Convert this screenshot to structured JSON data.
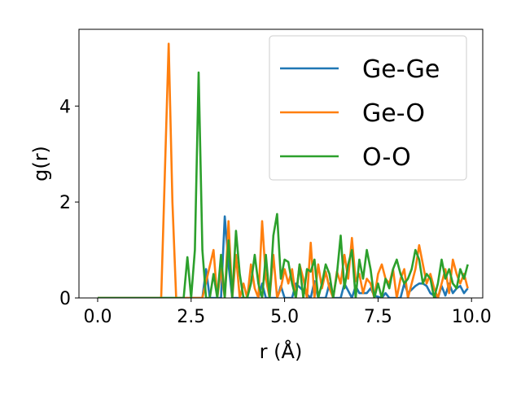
{
  "chart_data": {
    "type": "line",
    "xlabel": "r (Å)",
    "ylabel": "g(r)",
    "xlim": [
      -0.5,
      10.3
    ],
    "ylim": [
      0,
      5.6
    ],
    "xticks": [
      0.0,
      2.5,
      5.0,
      7.5,
      10.0
    ],
    "xtick_labels": [
      "0.0",
      "2.5",
      "5.0",
      "7.5",
      "10.0"
    ],
    "yticks": [
      0,
      2,
      4
    ],
    "ytick_labels": [
      "0",
      "2",
      "4"
    ],
    "grid": false,
    "legend_position": "top-right",
    "series": [
      {
        "name": "Ge-Ge",
        "color": "#1f77b4",
        "x": [
          0.0,
          2.8,
          2.9,
          3.0,
          3.3,
          3.4,
          3.5,
          3.6,
          4.3,
          4.4,
          4.5,
          4.8,
          4.9,
          5.0,
          5.2,
          5.3,
          5.7,
          5.8,
          5.9,
          6.1,
          6.2,
          6.3,
          6.5,
          6.6,
          6.8,
          6.9,
          7.0,
          7.2,
          7.3,
          7.4,
          7.6,
          7.7,
          7.8,
          8.1,
          8.2,
          8.3,
          8.5,
          8.6,
          8.7,
          8.8,
          8.9,
          9.0,
          9.1,
          9.2,
          9.3,
          9.4,
          9.5,
          9.6,
          9.7,
          9.8,
          9.9
        ],
        "y": [
          0.0,
          0.0,
          0.6,
          0.0,
          0.0,
          1.7,
          0.7,
          0.0,
          0.0,
          0.3,
          0.0,
          0.0,
          0.25,
          0.0,
          0.0,
          0.3,
          0.0,
          0.35,
          0.0,
          0.0,
          0.3,
          0.0,
          0.0,
          0.3,
          0.0,
          0.25,
          0.1,
          0.1,
          0.2,
          0.05,
          0.0,
          0.1,
          0.0,
          0.0,
          0.3,
          0.1,
          0.25,
          0.3,
          0.3,
          0.25,
          0.1,
          0.05,
          0.0,
          0.25,
          0.05,
          0.3,
          0.1,
          0.2,
          0.25,
          0.1,
          0.2
        ]
      },
      {
        "name": "Ge-O",
        "color": "#ff7f0e",
        "x": [
          0.0,
          1.7,
          1.9,
          2.0,
          2.1,
          2.8,
          3.1,
          3.2,
          3.3,
          3.4,
          3.5,
          3.6,
          3.7,
          3.8,
          3.9,
          4.0,
          4.1,
          4.2,
          4.3,
          4.4,
          4.5,
          4.6,
          4.7,
          4.8,
          4.9,
          5.0,
          5.1,
          5.2,
          5.3,
          5.4,
          5.5,
          5.6,
          5.7,
          5.8,
          5.9,
          6.0,
          6.1,
          6.2,
          6.3,
          6.4,
          6.5,
          6.6,
          6.7,
          6.8,
          6.9,
          7.0,
          7.1,
          7.2,
          7.3,
          7.4,
          7.5,
          7.6,
          7.7,
          7.8,
          7.9,
          8.0,
          8.1,
          8.2,
          8.3,
          8.4,
          8.5,
          8.6,
          8.7,
          8.8,
          8.9,
          9.0,
          9.1,
          9.2,
          9.3,
          9.4,
          9.5,
          9.6,
          9.7,
          9.8,
          9.9
        ],
        "y": [
          0.0,
          0.0,
          5.3,
          2.0,
          0.0,
          0.0,
          1.0,
          0.0,
          0.6,
          0.0,
          1.6,
          0.0,
          0.9,
          0.0,
          0.3,
          0.0,
          0.7,
          0.2,
          0.0,
          1.6,
          0.4,
          0.0,
          0.9,
          0.0,
          0.2,
          0.6,
          0.3,
          0.6,
          0.0,
          0.7,
          0.4,
          0.0,
          1.15,
          0.0,
          0.7,
          0.2,
          0.55,
          0.2,
          0.0,
          0.55,
          0.3,
          0.9,
          0.4,
          1.25,
          0.35,
          0.5,
          0.1,
          0.4,
          0.3,
          0.0,
          0.5,
          0.7,
          0.4,
          0.3,
          0.6,
          0.0,
          0.4,
          0.6,
          0.0,
          0.3,
          0.6,
          1.1,
          0.7,
          0.3,
          0.5,
          0.2,
          0.0,
          0.3,
          0.6,
          0.1,
          0.8,
          0.5,
          0.3,
          0.5,
          0.2
        ]
      },
      {
        "name": "O-O",
        "color": "#2ca02c",
        "x": [
          0.0,
          2.3,
          2.4,
          2.5,
          2.6,
          2.7,
          2.8,
          2.9,
          3.0,
          3.1,
          3.2,
          3.3,
          3.4,
          3.5,
          3.6,
          3.7,
          3.8,
          3.9,
          4.0,
          4.1,
          4.2,
          4.3,
          4.4,
          4.5,
          4.6,
          4.7,
          4.8,
          4.9,
          5.0,
          5.1,
          5.2,
          5.3,
          5.4,
          5.5,
          5.6,
          5.7,
          5.8,
          5.9,
          6.0,
          6.1,
          6.2,
          6.3,
          6.4,
          6.5,
          6.6,
          6.7,
          6.8,
          6.9,
          7.0,
          7.1,
          7.2,
          7.3,
          7.4,
          7.5,
          7.6,
          7.7,
          7.8,
          7.9,
          8.0,
          8.1,
          8.2,
          8.3,
          8.4,
          8.5,
          8.6,
          8.7,
          8.8,
          8.9,
          9.0,
          9.1,
          9.2,
          9.3,
          9.4,
          9.5,
          9.6,
          9.7,
          9.8,
          9.9
        ],
        "y": [
          0.0,
          0.0,
          0.85,
          0.0,
          1.0,
          4.7,
          1.0,
          0.0,
          0.0,
          0.5,
          0.0,
          0.9,
          0.0,
          1.2,
          0.0,
          1.4,
          0.5,
          0.0,
          0.0,
          0.3,
          0.9,
          0.3,
          0.0,
          0.9,
          0.0,
          1.3,
          1.75,
          0.4,
          0.8,
          0.75,
          0.3,
          0.0,
          0.7,
          0.0,
          0.6,
          0.55,
          0.8,
          0.0,
          0.3,
          0.7,
          0.5,
          0.0,
          0.5,
          1.3,
          0.2,
          0.7,
          1.0,
          0.0,
          0.8,
          0.4,
          1.0,
          0.6,
          0.0,
          0.3,
          0.0,
          0.4,
          0.2,
          0.6,
          0.8,
          0.5,
          0.3,
          0.4,
          0.6,
          1.0,
          0.8,
          0.3,
          0.5,
          0.4,
          0.0,
          0.3,
          0.8,
          0.4,
          0.6,
          0.3,
          0.2,
          0.6,
          0.4,
          0.7
        ]
      }
    ]
  }
}
